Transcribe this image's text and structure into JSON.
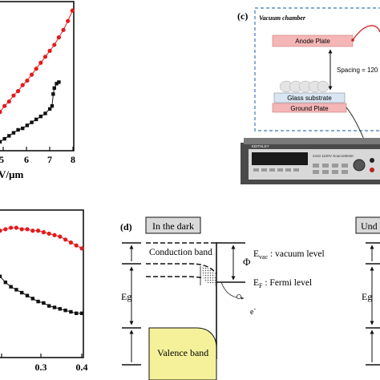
{
  "panel_a": {
    "xlabel": "V/µm",
    "x_ticks": [
      "5",
      "6",
      "7",
      "8"
    ],
    "chart_data": {
      "type": "scatter",
      "xlim": [
        4.7,
        8.1
      ],
      "ylim": [
        0,
        1
      ],
      "grid": false,
      "series": [
        {
          "color": "#e31a1c",
          "x": [
            4.7,
            4.9,
            5.1,
            5.3,
            5.5,
            5.7,
            5.9,
            6.1,
            6.3,
            6.5,
            6.7,
            6.9,
            7.1,
            7.3,
            7.5,
            7.7,
            7.9
          ],
          "y": [
            0.26,
            0.3,
            0.33,
            0.37,
            0.4,
            0.44,
            0.47,
            0.51,
            0.55,
            0.59,
            0.63,
            0.67,
            0.71,
            0.76,
            0.81,
            0.87,
            0.94
          ]
        },
        {
          "color": "#111111",
          "x": [
            4.7,
            4.9,
            5.1,
            5.3,
            5.5,
            5.7,
            5.9,
            6.1,
            6.3,
            6.5,
            6.7,
            6.9,
            7.0,
            7.05,
            7.1,
            7.2,
            7.3
          ],
          "y": [
            0.06,
            0.08,
            0.1,
            0.12,
            0.14,
            0.15,
            0.17,
            0.19,
            0.21,
            0.23,
            0.25,
            0.28,
            0.3,
            0.38,
            0.42,
            0.45,
            0.46
          ]
        }
      ]
    }
  },
  "panel_b": {
    "x_ticks": [
      "0.3",
      "0.4"
    ],
    "chart_data": {
      "type": "scatter",
      "xlim": [
        0.1,
        0.4
      ],
      "ylim": [
        0,
        1
      ],
      "grid": false,
      "series": [
        {
          "color": "#e31a1c",
          "x": [
            0.1,
            0.12,
            0.14,
            0.16,
            0.18,
            0.2,
            0.22,
            0.24,
            0.26,
            0.28,
            0.3,
            0.32,
            0.34,
            0.36,
            0.38,
            0.4
          ],
          "y": [
            0.86,
            0.87,
            0.88,
            0.88,
            0.87,
            0.87,
            0.86,
            0.86,
            0.85,
            0.84,
            0.83,
            0.82,
            0.8,
            0.78,
            0.76,
            0.74
          ]
        },
        {
          "color": "#111111",
          "x": [
            0.1,
            0.12,
            0.14,
            0.16,
            0.18,
            0.2,
            0.22,
            0.24,
            0.26,
            0.28,
            0.3,
            0.32,
            0.34,
            0.36,
            0.38,
            0.4
          ],
          "y": [
            0.55,
            0.51,
            0.48,
            0.46,
            0.44,
            0.42,
            0.4,
            0.38,
            0.37,
            0.35,
            0.34,
            0.33,
            0.32,
            0.31,
            0.3,
            0.3
          ]
        }
      ]
    }
  },
  "panel_c": {
    "label": "(c)",
    "chamber_label": "Vacuum chamber",
    "anode": "Anode Plate",
    "glass": "Glass substrate",
    "ground": "Ground Plate",
    "spacing": "Spacing = 120",
    "instrument_brand": "KEITHLEY",
    "instrument_model": "2410 1100V SourceMeter",
    "colors": {
      "chamber_border": "#3b79b7",
      "plate": "#f4b6b6",
      "glass": "#d9e6f2",
      "lead": "#cc2222"
    }
  },
  "panel_d": {
    "label": "(d)",
    "title": "In the dark",
    "next_title": "Und",
    "conduction": "Conduction band",
    "valence": "Valence band",
    "eg": "Eg",
    "eg2": "Eg",
    "phi": "Φ",
    "evac_main": "E",
    "evac_sub": "vac",
    "evac_rest": " : vacuum level",
    "ef_main": "E",
    "ef_sub": "F",
    "ef_rest": " : Fermi level",
    "electron_e": "e",
    "electron_minus": "-",
    "colors": {
      "valence_fill": "#f4f19a",
      "title_box": "#d9d9d9"
    }
  }
}
